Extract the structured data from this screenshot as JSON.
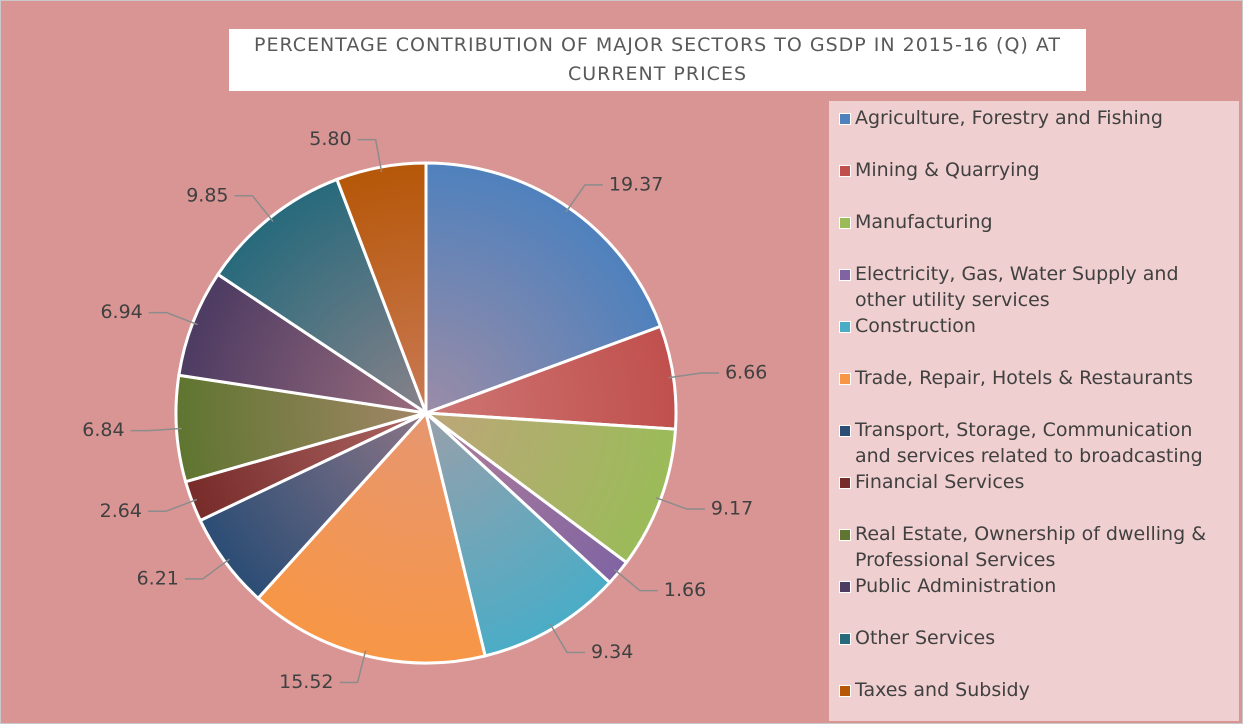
{
  "chart_data": {
    "type": "pie",
    "title": "PERCENTAGE CONTRIBUTION OF MAJOR SECTORS TO GSDP IN 2015-16 (Q) AT CURRENT PRICES",
    "categories": [
      "Agriculture, Forestry and Fishing",
      "Mining & Quarrying",
      "Manufacturing",
      "Electricity, Gas, Water Supply and other utility services",
      "Construction",
      "Trade, Repair, Hotels & Restaurants",
      "Transport, Storage, Communication and services related to broadcasting",
      "Financial Services",
      "Real Estate, Ownership of dwelling & Professional Services",
      "Public Administration",
      "Other Services",
      "Taxes and Subsidy"
    ],
    "values": [
      19.37,
      6.66,
      9.17,
      1.66,
      9.34,
      15.52,
      6.21,
      2.64,
      6.84,
      6.94,
      9.85,
      5.8
    ],
    "value_labels": [
      "19.37",
      "6.66",
      "9.17",
      "1.66",
      "9.34",
      "15.52",
      "6.21",
      "2.64",
      "6.84",
      "6.94",
      "9.85",
      "5.80"
    ],
    "colors": [
      "#4f81bd",
      "#c0504d",
      "#9bbb59",
      "#8064a2",
      "#4bacc6",
      "#f79646",
      "#2c4d75",
      "#772c2a",
      "#5f7530",
      "#4d3b62",
      "#276a7c",
      "#b65708"
    ],
    "legend": "right"
  }
}
